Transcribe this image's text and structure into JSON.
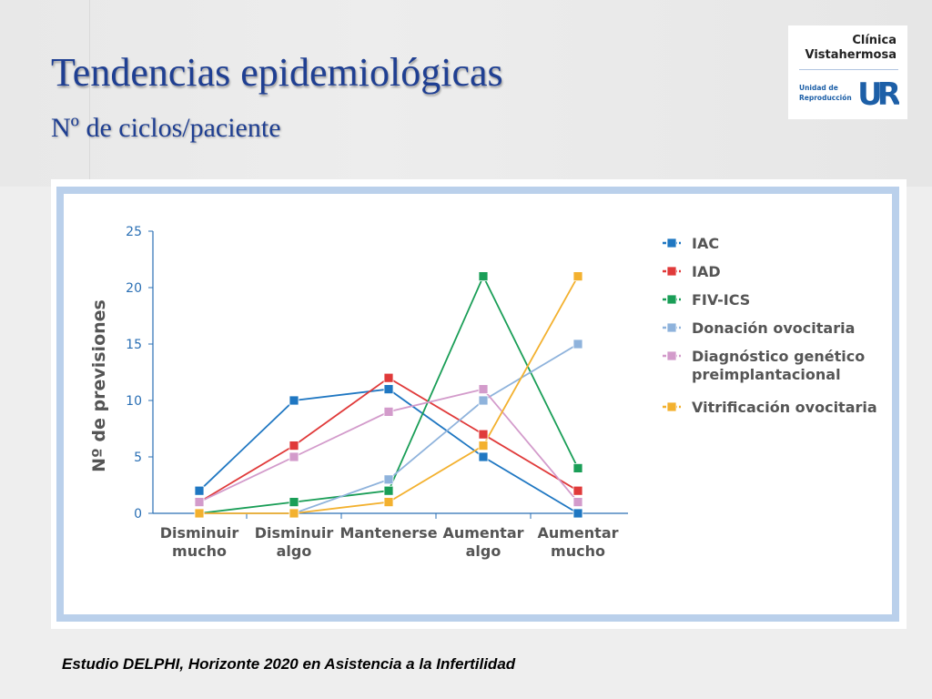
{
  "slide": {
    "title": "Tendencias epidemiológicas",
    "subtitle": "Nº de ciclos/paciente",
    "caption": "Estudio DELPHI, Horizonte 2020 en Asistencia a la Infertilidad"
  },
  "logo": {
    "name_line1": "Clínica",
    "name_line2": "Vistahermosa",
    "unit_line1": "Unidad de",
    "unit_line2": "Reproducción",
    "mark": "UR",
    "mark_color": "#1d5fa7"
  },
  "chart_data": {
    "type": "line",
    "ylabel": "Nº de previsiones",
    "xlabel": "",
    "ylim": [
      0,
      25
    ],
    "yticks": [
      0,
      5,
      10,
      15,
      20,
      25
    ],
    "categories": [
      [
        "Disminuir",
        "mucho"
      ],
      [
        "Disminuir",
        "algo"
      ],
      [
        "Mantenerse"
      ],
      [
        "Aumentar",
        "algo"
      ],
      [
        "Aumentar",
        "mucho"
      ]
    ],
    "legend_position": "right",
    "series": [
      {
        "name": [
          "IAC"
        ],
        "color": "#1f77c2",
        "values": [
          2,
          10,
          11,
          5,
          0
        ]
      },
      {
        "name": [
          "IAD"
        ],
        "color": "#e03a3a",
        "values": [
          1,
          6,
          12,
          7,
          2
        ]
      },
      {
        "name": [
          "FIV-ICS"
        ],
        "color": "#1a9e57",
        "values": [
          0,
          1,
          2,
          21,
          4
        ]
      },
      {
        "name": [
          "Donación ovocitaria"
        ],
        "color": "#8fb3dc",
        "values": [
          0,
          0,
          3,
          10,
          15
        ]
      },
      {
        "name": [
          "Diagnóstico genético",
          "preimplantacional"
        ],
        "color": "#d39bcb",
        "values": [
          1,
          5,
          9,
          11,
          1
        ]
      },
      {
        "name": [
          "Vitrificación ovocitaria"
        ],
        "color": "#f3b12f",
        "values": [
          0,
          0,
          1,
          6,
          21
        ]
      }
    ]
  }
}
